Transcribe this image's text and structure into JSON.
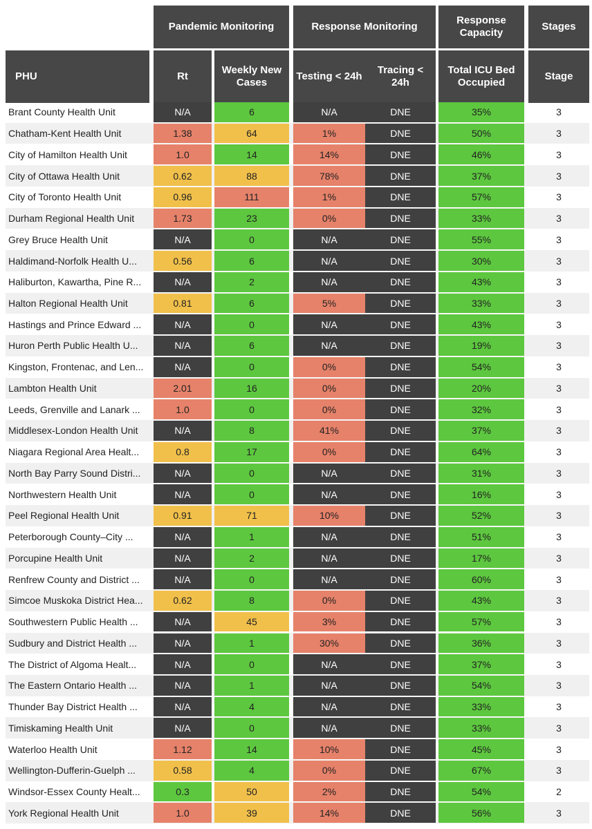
{
  "header_groups": [
    "Pandemic Monitoring",
    "Response Monitoring",
    "Response Capacity",
    "Stages"
  ],
  "columns": [
    "PHU",
    "Rt",
    "Weekly New Cases",
    "Testing < 24h",
    "Tracing < 24h",
    "Total ICU Bed Occupied",
    "Stage"
  ],
  "table": {
    "rows": [
      [
        "Brant County Health Unit",
        "N/A",
        "6",
        "N/A",
        "DNE",
        "35%",
        "3"
      ],
      [
        "Chatham-Kent Health Unit",
        "1.38",
        "64",
        "1%",
        "DNE",
        "50%",
        "3"
      ],
      [
        "City of Hamilton Health Unit",
        "1.0",
        "14",
        "14%",
        "DNE",
        "46%",
        "3"
      ],
      [
        "City of Ottawa Health Unit",
        "0.62",
        "88",
        "78%",
        "DNE",
        "37%",
        "3"
      ],
      [
        "City of Toronto Health Unit",
        "0.96",
        "111",
        "1%",
        "DNE",
        "57%",
        "3"
      ],
      [
        "Durham Regional Health Unit",
        "1.73",
        "23",
        "0%",
        "DNE",
        "33%",
        "3"
      ],
      [
        "Grey Bruce Health Unit",
        "N/A",
        "0",
        "N/A",
        "DNE",
        "55%",
        "3"
      ],
      [
        "Haldimand-Norfolk Health U...",
        "0.56",
        "6",
        "N/A",
        "DNE",
        "30%",
        "3"
      ],
      [
        "Haliburton, Kawartha, Pine R...",
        "N/A",
        "2",
        "N/A",
        "DNE",
        "43%",
        "3"
      ],
      [
        "Halton Regional Health Unit",
        "0.81",
        "6",
        "5%",
        "DNE",
        "33%",
        "3"
      ],
      [
        "Hastings and Prince Edward ...",
        "N/A",
        "0",
        "N/A",
        "DNE",
        "43%",
        "3"
      ],
      [
        "Huron Perth Public Health U...",
        "N/A",
        "6",
        "N/A",
        "DNE",
        "19%",
        "3"
      ],
      [
        "Kingston, Frontenac, and Len...",
        "N/A",
        "0",
        "0%",
        "DNE",
        "54%",
        "3"
      ],
      [
        "Lambton Health Unit",
        "2.01",
        "16",
        "0%",
        "DNE",
        "20%",
        "3"
      ],
      [
        "Leeds, Grenville and Lanark ...",
        "1.0",
        "0",
        "0%",
        "DNE",
        "32%",
        "3"
      ],
      [
        "Middlesex-London Health Unit",
        "N/A",
        "8",
        "41%",
        "DNE",
        "37%",
        "3"
      ],
      [
        "Niagara Regional Area Healt...",
        "0.8",
        "17",
        "0%",
        "DNE",
        "64%",
        "3"
      ],
      [
        "North Bay Parry Sound Distri...",
        "N/A",
        "0",
        "N/A",
        "DNE",
        "31%",
        "3"
      ],
      [
        "Northwestern Health Unit",
        "N/A",
        "0",
        "N/A",
        "DNE",
        "16%",
        "3"
      ],
      [
        "Peel Regional Health Unit",
        "0.91",
        "71",
        "10%",
        "DNE",
        "52%",
        "3"
      ],
      [
        "Peterborough County–City ...",
        "N/A",
        "1",
        "N/A",
        "DNE",
        "51%",
        "3"
      ],
      [
        "Porcupine Health Unit",
        "N/A",
        "2",
        "N/A",
        "DNE",
        "17%",
        "3"
      ],
      [
        "Renfrew County and District ...",
        "N/A",
        "0",
        "N/A",
        "DNE",
        "60%",
        "3"
      ],
      [
        "Simcoe Muskoka District Hea...",
        "0.62",
        "8",
        "0%",
        "DNE",
        "43%",
        "3"
      ],
      [
        "Southwestern Public Health ...",
        "N/A",
        "45",
        "3%",
        "DNE",
        "57%",
        "3"
      ],
      [
        "Sudbury and District Health ...",
        "N/A",
        "1",
        "30%",
        "DNE",
        "36%",
        "3"
      ],
      [
        "The District of Algoma Healt...",
        "N/A",
        "0",
        "N/A",
        "DNE",
        "37%",
        "3"
      ],
      [
        "The Eastern Ontario Health ...",
        "N/A",
        "1",
        "N/A",
        "DNE",
        "54%",
        "3"
      ],
      [
        "Thunder Bay District Health ...",
        "N/A",
        "4",
        "N/A",
        "DNE",
        "33%",
        "3"
      ],
      [
        "Timiskaming Health Unit",
        "N/A",
        "0",
        "N/A",
        "DNE",
        "33%",
        "3"
      ],
      [
        "Waterloo Health Unit",
        "1.12",
        "14",
        "10%",
        "DNE",
        "45%",
        "3"
      ],
      [
        "Wellington-Dufferin-Guelph ...",
        "0.58",
        "4",
        "0%",
        "DNE",
        "67%",
        "3"
      ],
      [
        "Windsor-Essex County Healt...",
        "0.3",
        "50",
        "2%",
        "DNE",
        "54%",
        "2"
      ],
      [
        "York Regional Health Unit",
        "1.0",
        "39",
        "14%",
        "DNE",
        "56%",
        "3"
      ]
    ],
    "colors": [
      [
        "#404040",
        "#5dc73f",
        "#404040",
        "#404040",
        "#5dc73f"
      ],
      [
        "#e6826a",
        "#f1c04b",
        "#e6826a",
        "#404040",
        "#5dc73f"
      ],
      [
        "#e6826a",
        "#5dc73f",
        "#e6826a",
        "#404040",
        "#5dc73f"
      ],
      [
        "#f1c04b",
        "#f1c04b",
        "#e6826a",
        "#404040",
        "#5dc73f"
      ],
      [
        "#f1c04b",
        "#e6826a",
        "#e6826a",
        "#404040",
        "#5dc73f"
      ],
      [
        "#e6826a",
        "#5dc73f",
        "#e6826a",
        "#404040",
        "#5dc73f"
      ],
      [
        "#404040",
        "#5dc73f",
        "#404040",
        "#404040",
        "#5dc73f"
      ],
      [
        "#f1c04b",
        "#5dc73f",
        "#404040",
        "#404040",
        "#5dc73f"
      ],
      [
        "#404040",
        "#5dc73f",
        "#404040",
        "#404040",
        "#5dc73f"
      ],
      [
        "#f1c04b",
        "#5dc73f",
        "#e6826a",
        "#404040",
        "#5dc73f"
      ],
      [
        "#404040",
        "#5dc73f",
        "#404040",
        "#404040",
        "#5dc73f"
      ],
      [
        "#404040",
        "#5dc73f",
        "#404040",
        "#404040",
        "#5dc73f"
      ],
      [
        "#404040",
        "#5dc73f",
        "#e6826a",
        "#404040",
        "#5dc73f"
      ],
      [
        "#e6826a",
        "#5dc73f",
        "#e6826a",
        "#404040",
        "#5dc73f"
      ],
      [
        "#e6826a",
        "#5dc73f",
        "#e6826a",
        "#404040",
        "#5dc73f"
      ],
      [
        "#404040",
        "#5dc73f",
        "#e6826a",
        "#404040",
        "#5dc73f"
      ],
      [
        "#f1c04b",
        "#5dc73f",
        "#e6826a",
        "#404040",
        "#5dc73f"
      ],
      [
        "#404040",
        "#5dc73f",
        "#404040",
        "#404040",
        "#5dc73f"
      ],
      [
        "#404040",
        "#5dc73f",
        "#404040",
        "#404040",
        "#5dc73f"
      ],
      [
        "#f1c04b",
        "#f1c04b",
        "#e6826a",
        "#404040",
        "#5dc73f"
      ],
      [
        "#404040",
        "#5dc73f",
        "#404040",
        "#404040",
        "#5dc73f"
      ],
      [
        "#404040",
        "#5dc73f",
        "#404040",
        "#404040",
        "#5dc73f"
      ],
      [
        "#404040",
        "#5dc73f",
        "#404040",
        "#404040",
        "#5dc73f"
      ],
      [
        "#f1c04b",
        "#5dc73f",
        "#e6826a",
        "#404040",
        "#5dc73f"
      ],
      [
        "#404040",
        "#f1c04b",
        "#e6826a",
        "#404040",
        "#5dc73f"
      ],
      [
        "#404040",
        "#5dc73f",
        "#e6826a",
        "#404040",
        "#5dc73f"
      ],
      [
        "#404040",
        "#5dc73f",
        "#404040",
        "#404040",
        "#5dc73f"
      ],
      [
        "#404040",
        "#5dc73f",
        "#404040",
        "#404040",
        "#5dc73f"
      ],
      [
        "#404040",
        "#5dc73f",
        "#404040",
        "#404040",
        "#5dc73f"
      ],
      [
        "#404040",
        "#5dc73f",
        "#404040",
        "#404040",
        "#5dc73f"
      ],
      [
        "#e6826a",
        "#5dc73f",
        "#e6826a",
        "#404040",
        "#5dc73f"
      ],
      [
        "#f1c04b",
        "#5dc73f",
        "#e6826a",
        "#404040",
        "#5dc73f"
      ],
      [
        "#5dc73f",
        "#f1c04b",
        "#e6826a",
        "#404040",
        "#5dc73f"
      ],
      [
        "#e6826a",
        "#f1c04b",
        "#e6826a",
        "#404040",
        "#5dc73f"
      ]
    ]
  }
}
